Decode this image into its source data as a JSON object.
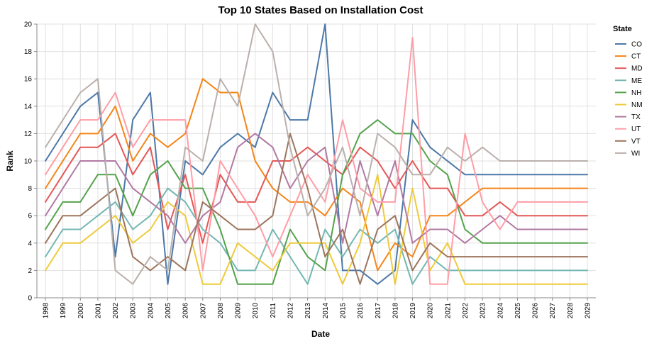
{
  "chart_data": {
    "type": "line",
    "title": "Top 10 States Based on Installation Cost",
    "xlabel": "Date",
    "ylabel": "Rank",
    "ylim": [
      0,
      20
    ],
    "yticks": [
      0,
      2,
      4,
      6,
      8,
      10,
      12,
      14,
      16,
      18,
      20
    ],
    "grid": true,
    "legend_title": "State",
    "legend_position": "right",
    "x": [
      "1998",
      "1999",
      "2000",
      "2001",
      "2002",
      "2003",
      "2004",
      "2005",
      "2006",
      "2007",
      "2008",
      "2009",
      "2010",
      "2011",
      "2012",
      "2013",
      "2014",
      "2015",
      "2016",
      "2017",
      "2018",
      "2019",
      "2020",
      "2021",
      "2022",
      "2023",
      "2024",
      "2025",
      "2026",
      "2027",
      "2028",
      "2029"
    ],
    "series": [
      {
        "name": "CO",
        "color": "#4c78a8",
        "values": [
          10,
          12,
          14,
          15,
          3,
          13,
          15,
          1,
          10,
          9,
          11,
          12,
          11,
          15,
          13,
          13,
          20,
          2,
          2,
          1,
          2,
          13,
          11,
          10,
          9,
          9,
          9,
          9,
          9,
          9,
          9,
          9
        ]
      },
      {
        "name": "CT",
        "color": "#f58518",
        "values": [
          8,
          10,
          12,
          12,
          14,
          10,
          12,
          11,
          12,
          16,
          15,
          15,
          10,
          8,
          7,
          7,
          6,
          8,
          7,
          2,
          4,
          3,
          6,
          6,
          7,
          8,
          8,
          8,
          8,
          8,
          8,
          8
        ]
      },
      {
        "name": "MD",
        "color": "#e45756",
        "values": [
          7,
          9,
          11,
          11,
          12,
          9,
          11,
          5,
          9,
          4,
          9,
          7,
          7,
          10,
          10,
          11,
          10,
          9,
          11,
          10,
          8,
          10,
          8,
          8,
          6,
          6,
          7,
          6,
          6,
          6,
          6,
          6
        ]
      },
      {
        "name": "ME",
        "color": "#72b7b2",
        "values": [
          3,
          5,
          5,
          6,
          7,
          5,
          6,
          8,
          7,
          5,
          4,
          2,
          2,
          5,
          3,
          1,
          5,
          3,
          5,
          4,
          5,
          1,
          3,
          2,
          2,
          2,
          2,
          2,
          2,
          2,
          2,
          2
        ]
      },
      {
        "name": "NH",
        "color": "#54a24b",
        "values": [
          5,
          7,
          7,
          9,
          9,
          6,
          9,
          10,
          8,
          8,
          5,
          1,
          1,
          1,
          5,
          3,
          2,
          9,
          12,
          13,
          12,
          12,
          10,
          9,
          5,
          4,
          4,
          4,
          4,
          4,
          4,
          4
        ]
      },
      {
        "name": "NM",
        "color": "#eeca3b",
        "values": [
          2,
          4,
          4,
          5,
          6,
          4,
          5,
          7,
          6,
          1,
          1,
          4,
          3,
          2,
          4,
          4,
          4,
          1,
          4,
          9,
          1,
          8,
          2,
          4,
          1,
          1,
          1,
          1,
          1,
          1,
          1,
          1
        ]
      },
      {
        "name": "TX",
        "color": "#b279a2",
        "values": [
          6,
          8,
          10,
          10,
          10,
          8,
          7,
          6,
          4,
          6,
          7,
          11,
          12,
          11,
          8,
          10,
          11,
          4,
          10,
          6,
          10,
          4,
          5,
          5,
          4,
          5,
          6,
          5,
          5,
          5,
          5,
          5
        ]
      },
      {
        "name": "UT",
        "color": "#ff9da6",
        "values": [
          9,
          11,
          13,
          13,
          15,
          11,
          13,
          13,
          13,
          2,
          10,
          8,
          6,
          3,
          6,
          9,
          7,
          13,
          8,
          7,
          7,
          19,
          1,
          1,
          12,
          7,
          5,
          7,
          7,
          7,
          7,
          7
        ]
      },
      {
        "name": "VT",
        "color": "#9d755d",
        "values": [
          4,
          6,
          6,
          7,
          8,
          3,
          2,
          3,
          2,
          7,
          6,
          5,
          5,
          6,
          12,
          8,
          3,
          5,
          1,
          5,
          6,
          2,
          4,
          3,
          3,
          3,
          3,
          3,
          3,
          3,
          3,
          3
        ]
      },
      {
        "name": "WI",
        "color": "#bab0ac",
        "values": [
          11,
          13,
          15,
          16,
          2,
          1,
          3,
          2,
          11,
          10,
          16,
          14,
          20,
          18,
          11,
          6,
          8,
          11,
          6,
          12,
          11,
          9,
          9,
          11,
          10,
          11,
          10,
          10,
          10,
          10,
          10,
          10
        ]
      }
    ]
  }
}
